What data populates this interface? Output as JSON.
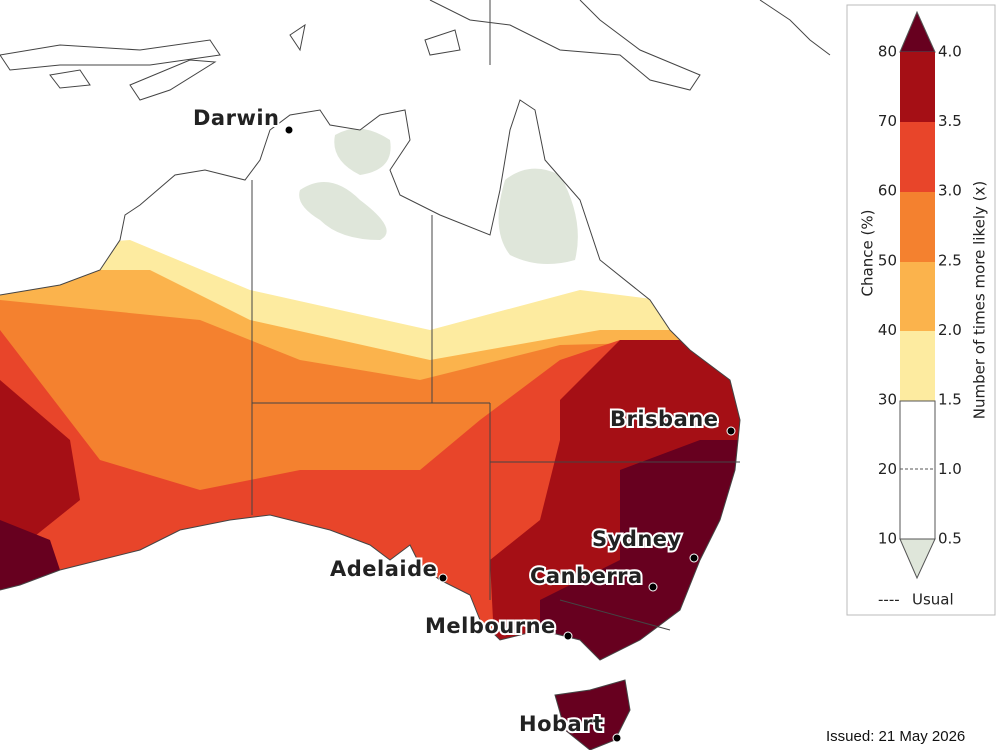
{
  "map": {
    "cities": [
      {
        "name": "Darwin"
      },
      {
        "name": "Brisbane"
      },
      {
        "name": "Sydney"
      },
      {
        "name": "Canberra"
      },
      {
        "name": "Adelaide"
      },
      {
        "name": "Melbourne"
      },
      {
        "name": "Hobart"
      }
    ]
  },
  "legend": {
    "chance_title": "Chance (%)",
    "ratio_title": "Number of times more likely (x)",
    "chance_ticks": [
      80,
      70,
      60,
      50,
      40,
      30,
      20,
      10
    ],
    "ratio_ticks": [
      "4.0",
      "3.5",
      "3.0",
      "2.5",
      "2.0",
      "1.5",
      "1.0",
      "0.5"
    ],
    "usual_label": "Usual"
  },
  "issued": "Issued: 21 May 2026"
}
